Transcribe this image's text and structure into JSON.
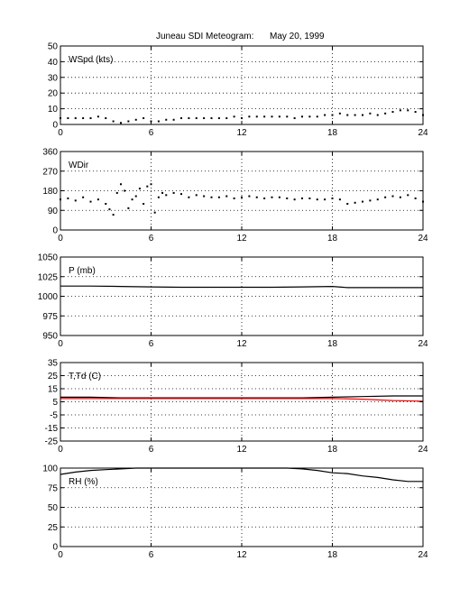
{
  "figure": {
    "title_left": "Juneau SDI Meteogram:",
    "title_right": "May 20, 1999"
  },
  "chart_data": [
    {
      "type": "scatter",
      "label": "WSpd (kts)",
      "xlim": [
        0,
        24
      ],
      "ylim": [
        0,
        50
      ],
      "xticks": [
        0,
        6,
        12,
        18,
        24
      ],
      "yticks": [
        0,
        10,
        20,
        30,
        40,
        50
      ],
      "grid": true,
      "series": [
        {
          "color": "#000000",
          "x": [
            0,
            0.5,
            1,
            1.5,
            2,
            2.5,
            3,
            3.5,
            4,
            4.5,
            5,
            5.5,
            6,
            6.5,
            7,
            7.5,
            8,
            8.5,
            9,
            9.5,
            10,
            10.5,
            11,
            11.5,
            12,
            12.5,
            13,
            13.5,
            14,
            14.5,
            15,
            15.5,
            16,
            16.5,
            17,
            17.5,
            18,
            18.5,
            19,
            19.5,
            20,
            20.5,
            21,
            21.5,
            22,
            22.5,
            23,
            23.5,
            24
          ],
          "y": [
            4,
            4,
            4,
            4,
            4,
            5,
            4,
            2,
            1,
            2,
            3,
            4,
            2,
            2,
            3,
            3,
            4,
            4,
            4,
            4,
            4,
            4,
            4,
            5,
            4,
            5,
            5,
            5,
            5,
            5,
            5,
            4,
            5,
            5,
            5,
            6,
            6,
            7,
            6,
            6,
            6,
            7,
            6,
            7,
            8,
            9,
            9,
            8,
            6
          ]
        }
      ]
    },
    {
      "type": "scatter",
      "label": "WDir",
      "xlim": [
        0,
        24
      ],
      "ylim": [
        0,
        360
      ],
      "xticks": [
        0,
        6,
        12,
        18,
        24
      ],
      "yticks": [
        0,
        90,
        180,
        270,
        360
      ],
      "grid": true,
      "series": [
        {
          "color": "#000000",
          "x": [
            0,
            0.5,
            1,
            1.5,
            2,
            2.5,
            3,
            3.25,
            3.5,
            3.75,
            4,
            4.25,
            4.5,
            4.75,
            5,
            5.25,
            5.5,
            5.75,
            6,
            6.25,
            6.5,
            6.75,
            7,
            7.5,
            8,
            8.5,
            9,
            9.5,
            10,
            10.5,
            11,
            11.5,
            12,
            12.5,
            13,
            13.5,
            14,
            14.5,
            15,
            15.5,
            16,
            16.5,
            17,
            17.5,
            18,
            18.5,
            19,
            19.5,
            20,
            20.5,
            21,
            21.5,
            22,
            22.5,
            23,
            23.5,
            24
          ],
          "y": [
            140,
            145,
            135,
            150,
            130,
            140,
            120,
            95,
            70,
            170,
            210,
            180,
            100,
            140,
            155,
            190,
            120,
            200,
            210,
            80,
            150,
            170,
            160,
            170,
            165,
            150,
            160,
            155,
            150,
            150,
            155,
            145,
            150,
            155,
            150,
            145,
            150,
            150,
            145,
            140,
            145,
            145,
            140,
            140,
            145,
            140,
            120,
            125,
            130,
            135,
            140,
            150,
            155,
            150,
            160,
            145,
            130
          ]
        }
      ]
    },
    {
      "type": "line",
      "label": "P (mb)",
      "xlim": [
        0,
        24
      ],
      "ylim": [
        950,
        1050
      ],
      "xticks": [
        0,
        6,
        12,
        18,
        24
      ],
      "yticks": [
        950,
        975,
        1000,
        1025,
        1050
      ],
      "grid": true,
      "series": [
        {
          "color": "#000000",
          "x": [
            0,
            2,
            4,
            6,
            8,
            10,
            12,
            14,
            16,
            18,
            19,
            20,
            22,
            24
          ],
          "y": [
            1013,
            1013,
            1012.5,
            1012,
            1011.5,
            1011.5,
            1011.5,
            1011.5,
            1012,
            1012.5,
            1011,
            1011,
            1011,
            1011
          ]
        }
      ]
    },
    {
      "type": "line",
      "label": "T,Td (C)",
      "xlim": [
        0,
        24
      ],
      "ylim": [
        -25,
        35
      ],
      "xticks": [
        0,
        6,
        12,
        18,
        24
      ],
      "yticks": [
        -25,
        -15,
        -5,
        5,
        15,
        25,
        35
      ],
      "grid": true,
      "series": [
        {
          "color": "#000000",
          "x": [
            0,
            2,
            4,
            6,
            8,
            10,
            12,
            14,
            16,
            18,
            20,
            22,
            24
          ],
          "y": [
            8.5,
            8.5,
            8,
            8,
            8,
            8,
            8,
            8,
            8,
            8.5,
            9,
            9.5,
            9.5
          ]
        },
        {
          "color": "#ff0000",
          "x": [
            0,
            2,
            4,
            6,
            8,
            10,
            12,
            14,
            16,
            18,
            20,
            22,
            24
          ],
          "y": [
            7.5,
            7.5,
            7.5,
            7.5,
            7.5,
            7.5,
            7.5,
            7.5,
            7.5,
            7.5,
            7,
            6,
            5.5
          ]
        }
      ]
    },
    {
      "type": "line",
      "label": "RH (%)",
      "xlim": [
        0,
        24
      ],
      "ylim": [
        0,
        100
      ],
      "xticks": [
        0,
        6,
        12,
        18,
        24
      ],
      "yticks": [
        0,
        25,
        50,
        75,
        100
      ],
      "grid": true,
      "series": [
        {
          "color": "#000000",
          "x": [
            0,
            1,
            2,
            3,
            4,
            5,
            6,
            7,
            8,
            9,
            10,
            11,
            12,
            13,
            14,
            15,
            16,
            17,
            18,
            19,
            20,
            21,
            22,
            23,
            24
          ],
          "y": [
            92,
            95,
            97,
            98,
            99,
            100,
            100,
            100,
            100,
            100,
            100,
            100,
            100,
            100,
            100,
            100,
            99,
            97,
            94,
            93,
            90,
            88,
            85,
            83,
            83
          ]
        }
      ]
    }
  ]
}
